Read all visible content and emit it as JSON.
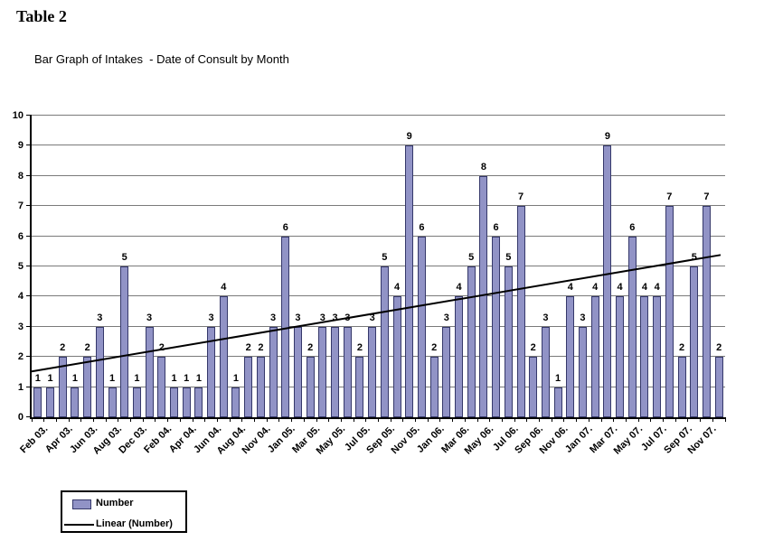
{
  "page": {
    "title": "Table 2"
  },
  "chart_data": {
    "type": "bar",
    "title": "Bar Graph of Intakes  - Date of Consult by Month",
    "xlabel": "",
    "ylabel": "",
    "ylim": [
      0,
      10
    ],
    "y_tick_interval": 1,
    "grid": true,
    "bar_value_labels_shown": true,
    "x_labels_shown_every": 2,
    "categories": [
      "Feb 03.",
      "",
      "Apr 03.",
      "",
      "Jun 03.",
      "",
      "Aug 03.",
      "",
      "Dec 03.",
      "",
      "Feb 04.",
      "",
      "Apr 04.",
      "",
      "Jun 04.",
      "",
      "Aug 04.",
      "",
      "Nov 04.",
      "",
      "Jan 05.",
      "",
      "Mar 05.",
      "",
      "May 05.",
      "",
      "Jul 05.",
      "",
      "Sep 05.",
      "",
      "Nov 05.",
      "",
      "Jan 06.",
      "",
      "Mar 06.",
      "",
      "May 06.",
      "",
      "Jul 06.",
      "",
      "Sep 06.",
      "",
      "Nov 06.",
      "",
      "Jan 07.",
      "",
      "Mar 07.",
      "",
      "May 07.",
      "",
      "Jul 07.",
      "",
      "Sep 07.",
      "",
      "Nov 07.",
      ""
    ],
    "series": [
      {
        "name": "Number",
        "type": "bar",
        "values": [
          1,
          1,
          2,
          1,
          2,
          3,
          1,
          5,
          1,
          3,
          2,
          1,
          1,
          1,
          3,
          4,
          1,
          2,
          2,
          3,
          6,
          3,
          2,
          3,
          3,
          3,
          2,
          3,
          5,
          4,
          9,
          6,
          2,
          3,
          4,
          5,
          8,
          6,
          5,
          7,
          2,
          3,
          1,
          4,
          3,
          4,
          9,
          4,
          6,
          4,
          4,
          7,
          2,
          5,
          7,
          2
        ]
      },
      {
        "name": "Linear (Number)",
        "type": "linear-trendline",
        "value_at_left": 1.52,
        "value_at_right": 5.38
      }
    ],
    "legend_position": "bottom-left"
  },
  "legend": {
    "items": [
      {
        "label": "Number",
        "swatch": "bar"
      },
      {
        "label": "Linear (Number)",
        "swatch": "line"
      }
    ]
  },
  "colors": {
    "bar_fill": "#9193C6",
    "bar_border": "#35386A",
    "gridline": "#7a7a7a",
    "axis": "#000000",
    "trend_line": "#000000",
    "background": "#FFFFFF",
    "text": "#000000"
  }
}
